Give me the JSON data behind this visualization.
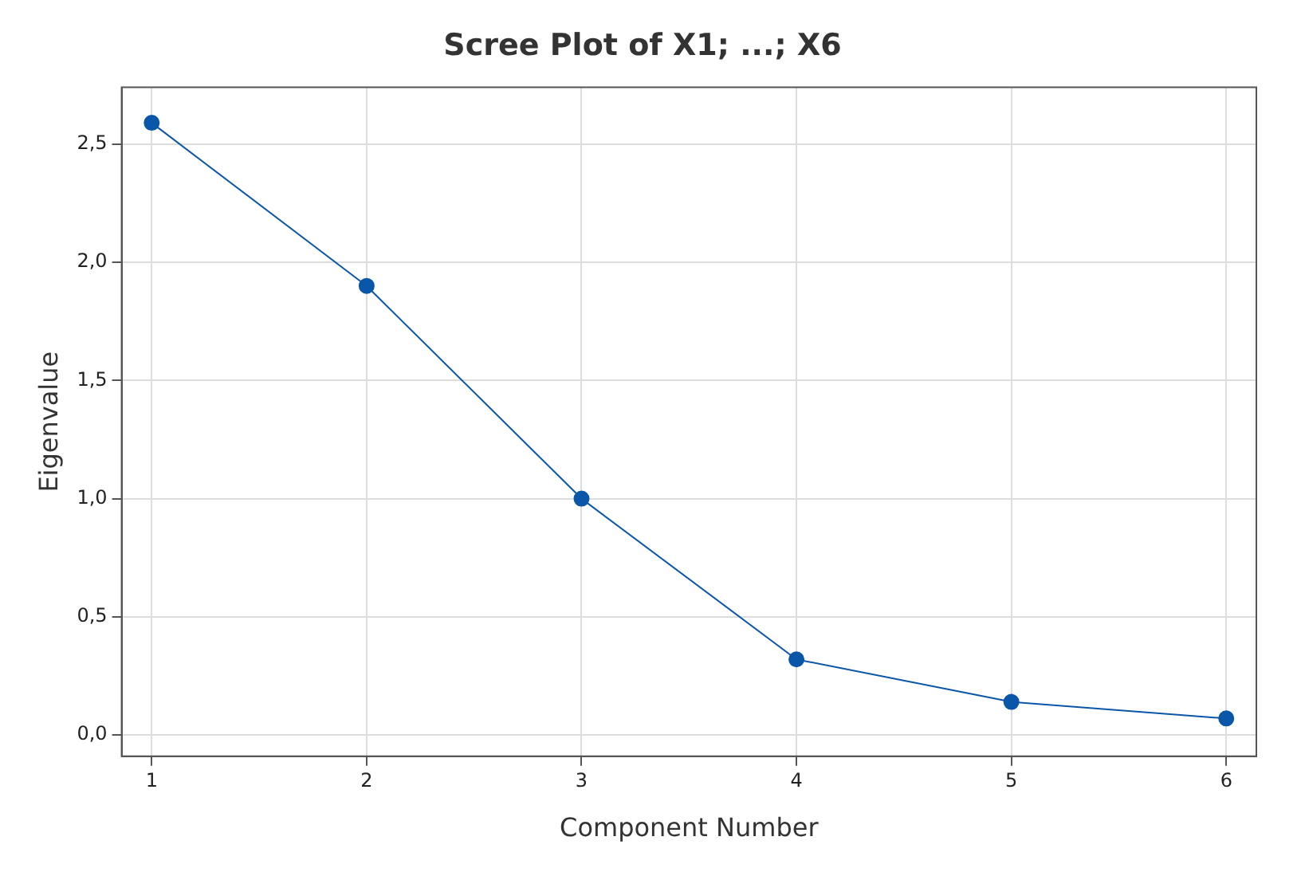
{
  "chart_data": {
    "type": "line",
    "title": "Scree Plot of X1; ...; X6",
    "xlabel": "Component Number",
    "ylabel": "Eigenvalue",
    "x": [
      1,
      2,
      3,
      4,
      5,
      6
    ],
    "series": [
      {
        "color": "#0a56a8",
        "values": [
          2.59,
          1.9,
          1.0,
          0.32,
          0.14,
          0.07
        ]
      }
    ],
    "xlim": [
      0.86,
      6.14
    ],
    "xticks": [
      1,
      2,
      3,
      4,
      5,
      6
    ],
    "ylim": [
      -0.09,
      2.74
    ],
    "yticks": [
      {
        "value": 0,
        "label": "0,0"
      },
      {
        "value": 0.5,
        "label": "0,5"
      },
      {
        "value": 1,
        "label": "1,0"
      },
      {
        "value": 1.5,
        "label": "1,5"
      },
      {
        "value": 2,
        "label": "2,0"
      },
      {
        "value": 2.5,
        "label": "2,5"
      }
    ],
    "grid": true,
    "marker": "circle",
    "line_style": "solid",
    "legend": false
  }
}
